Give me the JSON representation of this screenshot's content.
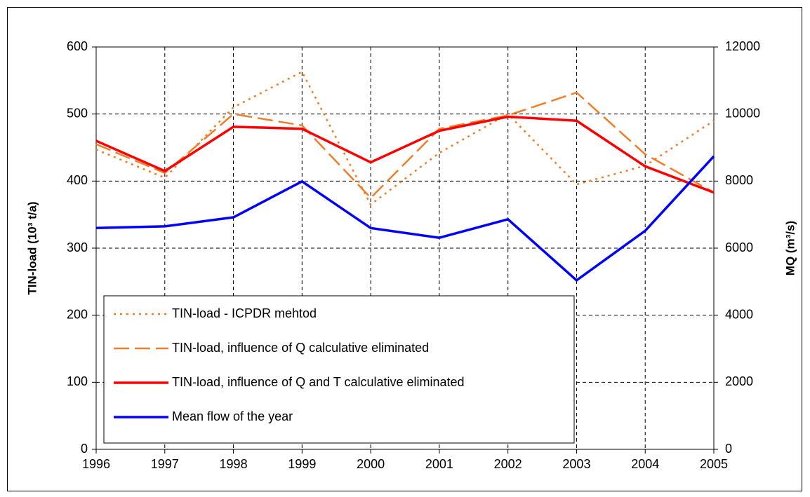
{
  "chart_data": {
    "type": "line",
    "y_label": "TIN-load (10³ t/a)",
    "y2_label": "MQ (m³/s)",
    "categories": [
      "1996",
      "1997",
      "1998",
      "1999",
      "2000",
      "2001",
      "2002",
      "2003",
      "2004",
      "2005"
    ],
    "series": [
      {
        "name": "TIN-load - ICPDR mehtod",
        "color": "#f07d28",
        "dash": "dotted",
        "values": [
          447,
          405,
          510,
          563,
          365,
          442,
          500,
          395,
          423,
          490
        ]
      },
      {
        "name": "TIN-load, influence of Q calculative eliminated",
        "color": "#f07d28",
        "dash": "dashed",
        "values": [
          455,
          412,
          500,
          483,
          375,
          478,
          498,
          532,
          440,
          383
        ]
      },
      {
        "name": "TIN-load, influence of Q and T calculative eliminated",
        "color": "#ff0000",
        "dash": "solid",
        "values": [
          460,
          415,
          481,
          478,
          428,
          475,
          496,
          490,
          422,
          383
        ]
      },
      {
        "name": "Mean flow of the year",
        "color": "#0000ff",
        "dash": "solid",
        "axis": "y2",
        "values": [
          6600,
          6650,
          6920,
          7990,
          6600,
          6310,
          6860,
          5040,
          6520,
          8740
        ]
      }
    ],
    "ylim": [
      0,
      600
    ],
    "yticks": [
      0,
      100,
      200,
      300,
      400,
      500,
      600
    ],
    "y2lim": [
      0,
      12000
    ],
    "y2ticks": [
      0,
      2000,
      4000,
      6000,
      8000,
      10000,
      12000
    ],
    "grid": true,
    "legend": "lower left"
  }
}
